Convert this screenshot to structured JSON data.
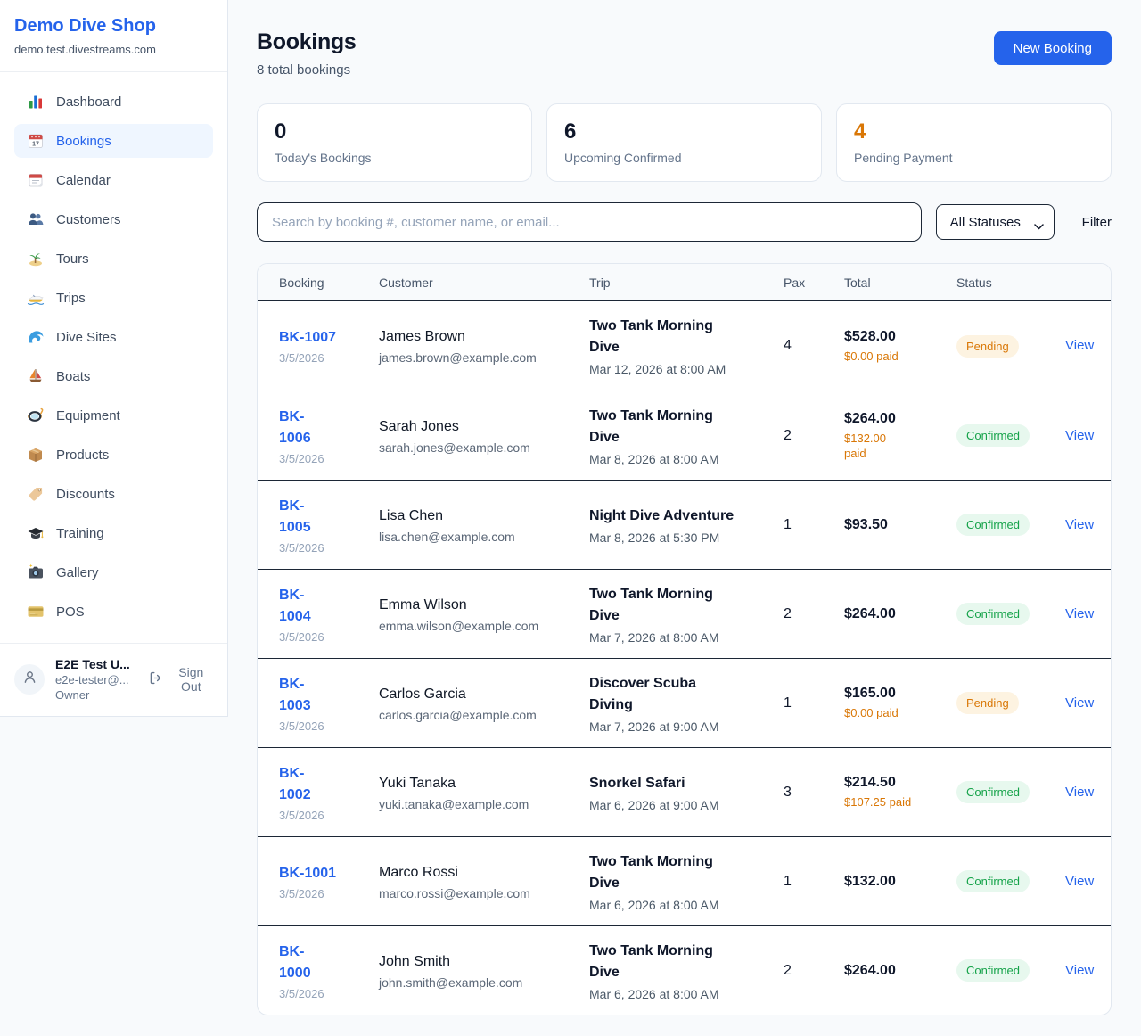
{
  "colors": {
    "accent_blue": "#2563eb",
    "pending_orange": "#d97706",
    "confirmed_green": "#16a34a",
    "pending_badge_bg": "#fdf3e1",
    "confirmed_badge_bg": "#e7f8ee"
  },
  "sidebar": {
    "brand": {
      "name": "Demo Dive Shop",
      "domain": "demo.test.divestreams.com"
    },
    "nav": [
      {
        "label": "Dashboard",
        "icon": "bar-chart",
        "active": false
      },
      {
        "label": "Bookings",
        "icon": "calendar-date",
        "active": true
      },
      {
        "label": "Calendar",
        "icon": "tear-calendar",
        "active": false
      },
      {
        "label": "Customers",
        "icon": "people",
        "active": false
      },
      {
        "label": "Tours",
        "icon": "island",
        "active": false
      },
      {
        "label": "Trips",
        "icon": "speedboat",
        "active": false
      },
      {
        "label": "Dive Sites",
        "icon": "wave",
        "active": false
      },
      {
        "label": "Boats",
        "icon": "sailboat",
        "active": false
      },
      {
        "label": "Equipment",
        "icon": "dive-mask",
        "active": false
      },
      {
        "label": "Products",
        "icon": "package",
        "active": false
      },
      {
        "label": "Discounts",
        "icon": "tag",
        "active": false
      },
      {
        "label": "Training",
        "icon": "grad-cap",
        "active": false
      },
      {
        "label": "Gallery",
        "icon": "camera",
        "active": false
      },
      {
        "label": "POS",
        "icon": "credit-card",
        "active": false
      }
    ],
    "user": {
      "name": "E2E Test U...",
      "email": "e2e-tester@...",
      "role": "Owner",
      "sign_out_label": "Sign Out"
    }
  },
  "header": {
    "title": "Bookings",
    "subtitle": "8 total bookings",
    "new_booking_label": "New Booking"
  },
  "stats": [
    {
      "value": "0",
      "label": "Today's Bookings",
      "value_color": "#0f172a"
    },
    {
      "value": "6",
      "label": "Upcoming Confirmed",
      "value_color": "#0f172a"
    },
    {
      "value": "4",
      "label": "Pending Payment",
      "value_color": "#d97706"
    }
  ],
  "filters": {
    "search_placeholder": "Search by booking #, customer name, or email...",
    "status_selected": "All Statuses",
    "filter_label": "Filter"
  },
  "table": {
    "columns": [
      "Booking",
      "Customer",
      "Trip",
      "Pax",
      "Total",
      "Status"
    ],
    "view_label": "View",
    "rows": [
      {
        "id": "BK-1007",
        "date": "3/5/2026",
        "customer": "James Brown",
        "email": "james.brown@example.com",
        "trip": "Two Tank Morning\nDive",
        "trip_datetime": "Mar 12, 2026 at 8:00 AM",
        "pax": "4",
        "total": "$528.00",
        "paid": "$0.00 paid",
        "status": "Pending"
      },
      {
        "id": "BK-\n1006",
        "date": "3/5/2026",
        "customer": "Sarah Jones",
        "email": "sarah.jones@example.com",
        "trip": "Two Tank Morning\nDive",
        "trip_datetime": "Mar 8, 2026 at 8:00 AM",
        "pax": "2",
        "total": "$264.00",
        "paid": "$132.00\npaid",
        "status": "Confirmed"
      },
      {
        "id": "BK-\n1005",
        "date": "3/5/2026",
        "customer": "Lisa Chen",
        "email": "lisa.chen@example.com",
        "trip": "Night Dive Adventure",
        "trip_datetime": "Mar 8, 2026 at 5:30 PM",
        "pax": "1",
        "total": "$93.50",
        "paid": "",
        "status": "Confirmed"
      },
      {
        "id": "BK-\n1004",
        "date": "3/5/2026",
        "customer": "Emma Wilson",
        "email": "emma.wilson@example.com",
        "trip": "Two Tank Morning\nDive",
        "trip_datetime": "Mar 7, 2026 at 8:00 AM",
        "pax": "2",
        "total": "$264.00",
        "paid": "",
        "status": "Confirmed"
      },
      {
        "id": "BK-\n1003",
        "date": "3/5/2026",
        "customer": "Carlos Garcia",
        "email": "carlos.garcia@example.com",
        "trip": "Discover Scuba\nDiving",
        "trip_datetime": "Mar 7, 2026 at 9:00 AM",
        "pax": "1",
        "total": "$165.00",
        "paid": "$0.00 paid",
        "status": "Pending"
      },
      {
        "id": "BK-\n1002",
        "date": "3/5/2026",
        "customer": "Yuki Tanaka",
        "email": "yuki.tanaka@example.com",
        "trip": "Snorkel Safari",
        "trip_datetime": "Mar 6, 2026 at 9:00 AM",
        "pax": "3",
        "total": "$214.50",
        "paid": "$107.25 paid",
        "status": "Confirmed"
      },
      {
        "id": "BK-1001",
        "date": "3/5/2026",
        "customer": "Marco Rossi",
        "email": "marco.rossi@example.com",
        "trip": "Two Tank Morning\nDive",
        "trip_datetime": "Mar 6, 2026 at 8:00 AM",
        "pax": "1",
        "total": "$132.00",
        "paid": "",
        "status": "Confirmed"
      },
      {
        "id": "BK-\n1000",
        "date": "3/5/2026",
        "customer": "John Smith",
        "email": "john.smith@example.com",
        "trip": "Two Tank Morning\nDive",
        "trip_datetime": "Mar 6, 2026 at 8:00 AM",
        "pax": "2",
        "total": "$264.00",
        "paid": "",
        "status": "Confirmed"
      }
    ]
  }
}
